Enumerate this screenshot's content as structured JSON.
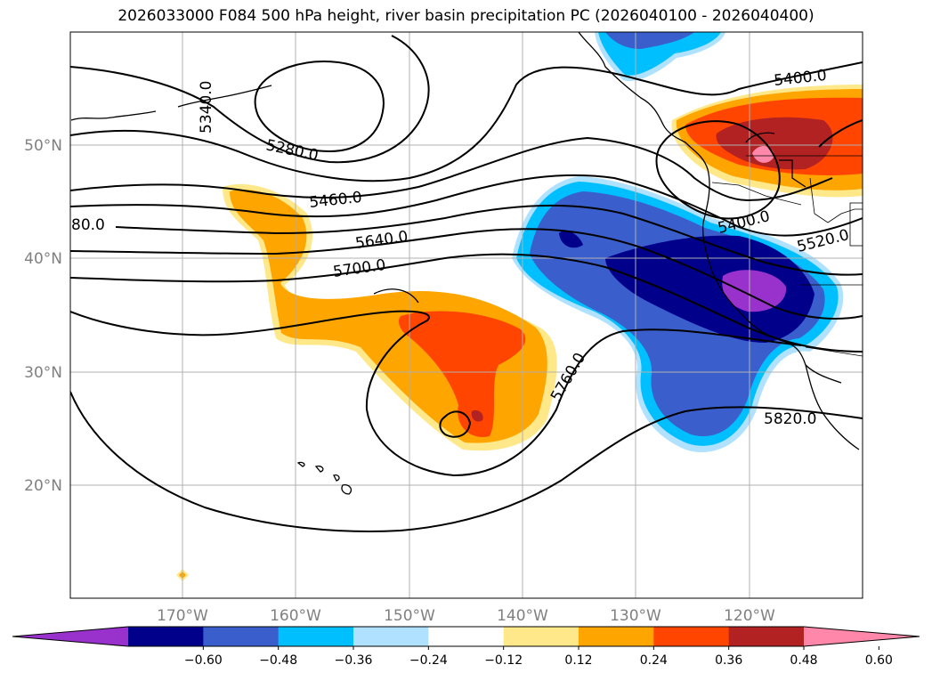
{
  "title": "2026033000 F084 500 hPa height, river basin precipitation PC (2026040100 - 2026040400)",
  "map": {
    "lat_labels": [
      "50°N",
      "40°N",
      "30°N",
      "20°N"
    ],
    "lon_labels": [
      "170°W",
      "160°W",
      "150°W",
      "140°W",
      "130°W",
      "120°W"
    ],
    "contour_labels": [
      "5340.0",
      "5280.0",
      "5460.0",
      "80.0",
      "5640.0",
      "5700.0",
      "5400.0",
      "5400.0",
      "5520.0",
      "5760.0",
      "5820.0"
    ],
    "contour_color": "#000000",
    "grid": true
  },
  "colorbar": {
    "ticks": [
      "−0.60",
      "−0.48",
      "−0.36",
      "−0.24",
      "−0.12",
      "0.12",
      "0.24",
      "0.36",
      "0.48",
      "0.60"
    ],
    "colors": [
      "#9932cc",
      "#00008b",
      "#3a5fcd",
      "#00bfff",
      "#b0e2ff",
      "#ffffff",
      "#ffe88a",
      "#ffa500",
      "#ff4500",
      "#b22222",
      "#ff88aa"
    ],
    "extend": "both"
  }
}
